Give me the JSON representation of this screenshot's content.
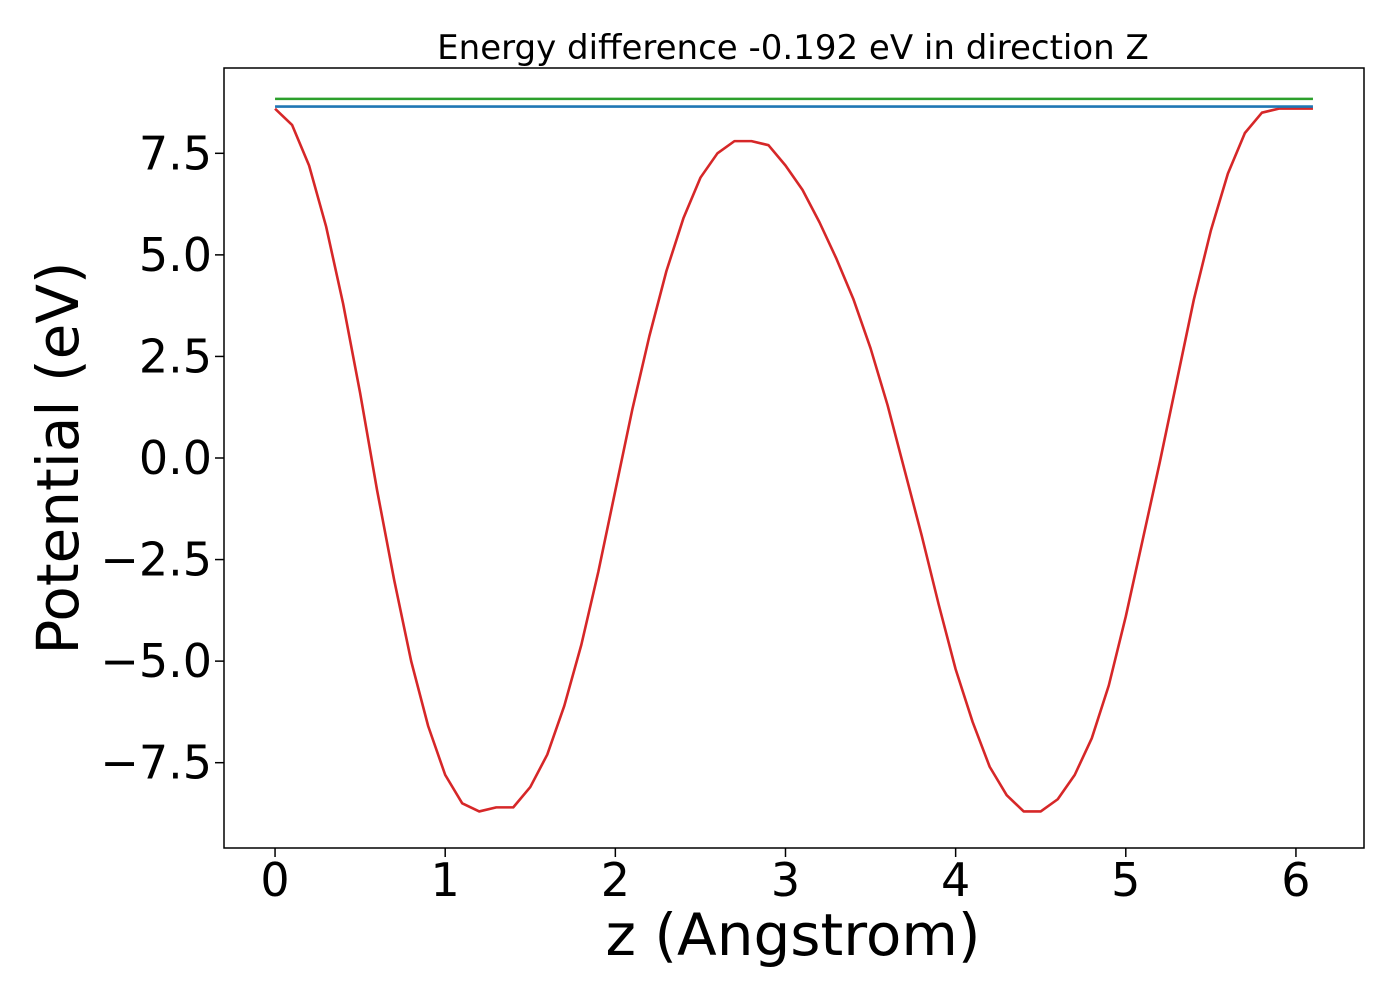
{
  "chart_data": {
    "type": "line",
    "title": "Energy difference -0.192 eV in direction Z",
    "xlabel": "z (Angstrom)",
    "ylabel": "Potential (eV)",
    "xlim": [
      -0.3,
      6.4
    ],
    "ylim": [
      -9.6,
      9.6
    ],
    "grid": false,
    "x_ticks": [
      0,
      1,
      2,
      3,
      4,
      5,
      6
    ],
    "x_tick_labels": [
      "0",
      "1",
      "2",
      "3",
      "4",
      "5",
      "6"
    ],
    "y_ticks": [
      -7.5,
      -5.0,
      -2.5,
      0.0,
      2.5,
      5.0,
      7.5
    ],
    "y_tick_labels": [
      "−7.5",
      "−5.0",
      "−2.5",
      "0.0",
      "2.5",
      "5.0",
      "7.5"
    ],
    "series": [
      {
        "color": "#d62728",
        "x": [
          0.0,
          0.1,
          0.2,
          0.3,
          0.4,
          0.5,
          0.6,
          0.7,
          0.8,
          0.9,
          1.0,
          1.1,
          1.2,
          1.3,
          1.4,
          1.5,
          1.6,
          1.7,
          1.8,
          1.9,
          2.0,
          2.1,
          2.2,
          2.3,
          2.4,
          2.5,
          2.6,
          2.7,
          2.8,
          2.9,
          3.0,
          3.1,
          3.2,
          3.3,
          3.4,
          3.5,
          3.6,
          3.7,
          3.8,
          3.9,
          4.0,
          4.1,
          4.2,
          4.3,
          4.4,
          4.5,
          4.6,
          4.7,
          4.8,
          4.9,
          5.0,
          5.1,
          5.2,
          5.3,
          5.4,
          5.5,
          5.6,
          5.7,
          5.8,
          5.9,
          6.0,
          6.1
        ],
        "y": [
          8.6,
          8.2,
          7.2,
          5.7,
          3.8,
          1.6,
          -0.8,
          -3.0,
          -5.0,
          -6.6,
          -7.8,
          -8.5,
          -8.7,
          -8.6,
          -8.6,
          -8.1,
          -7.3,
          -6.1,
          -4.6,
          -2.8,
          -0.8,
          1.2,
          3.0,
          4.6,
          5.9,
          6.9,
          7.5,
          7.8,
          7.8,
          7.7,
          7.2,
          6.6,
          5.8,
          4.9,
          3.9,
          2.7,
          1.3,
          -0.3,
          -1.9,
          -3.6,
          -5.2,
          -6.5,
          -7.6,
          -8.3,
          -8.7,
          -8.7,
          -8.4,
          -7.8,
          -6.9,
          -5.6,
          -3.9,
          -2.0,
          -0.1,
          1.9,
          3.9,
          5.6,
          7.0,
          8.0,
          8.5,
          8.6,
          8.6,
          8.6
        ]
      },
      {
        "color": "#1f77b4",
        "x": [
          0.0,
          6.1
        ],
        "y": [
          8.65,
          8.65
        ]
      },
      {
        "color": "#2ca02c",
        "x": [
          0.0,
          6.1
        ],
        "y": [
          8.84,
          8.84
        ]
      }
    ]
  }
}
